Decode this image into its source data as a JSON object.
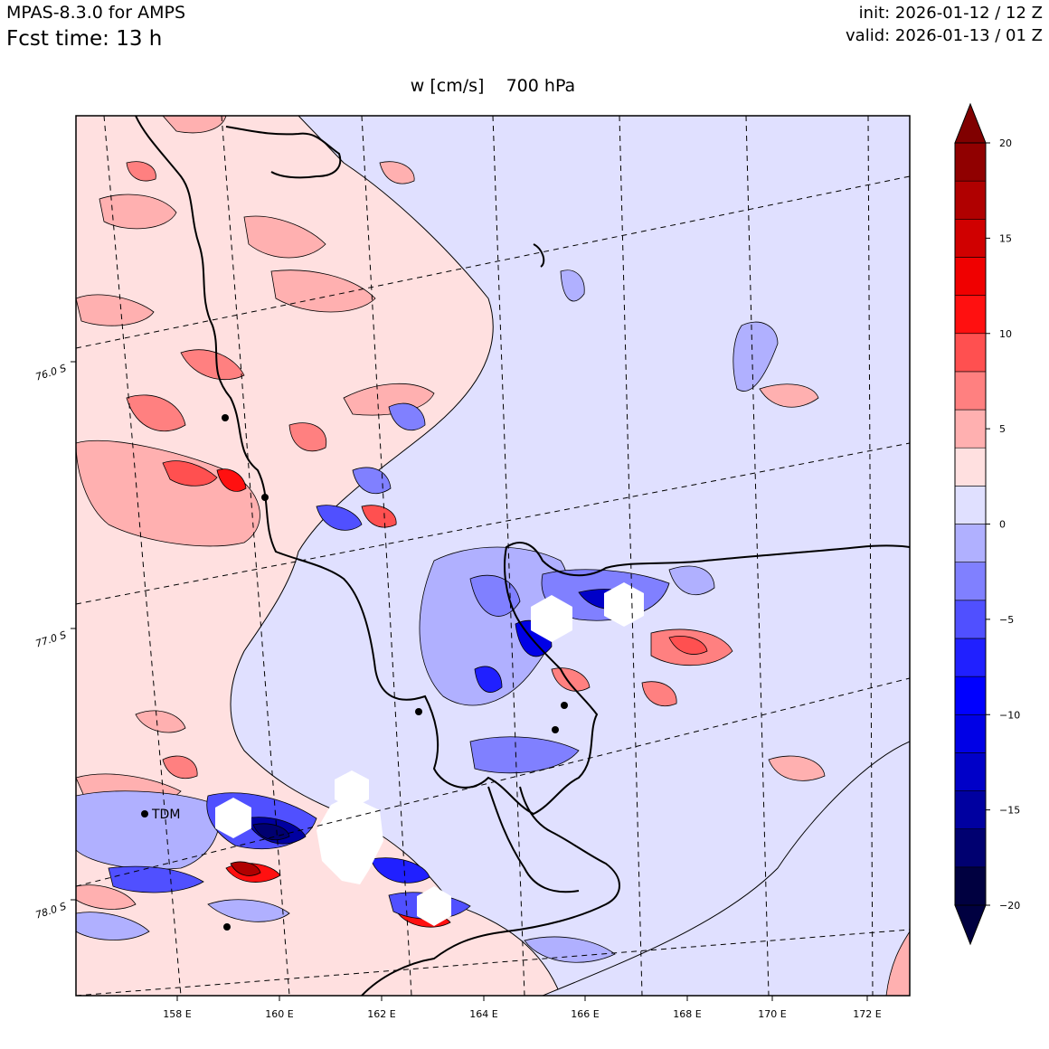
{
  "header": {
    "model": "MPAS-8.3.0 for AMPS",
    "forecast_time": "Fcst time:   13 h",
    "init": "init: 2026-01-12 / 12 Z",
    "valid": "valid: 2026-01-13 / 01 Z"
  },
  "plot": {
    "title": "w [cm/s]    700 hPa"
  },
  "axes": {
    "lon_ticks": [
      "158 E",
      "160 E",
      "162 E",
      "164 E",
      "166 E",
      "168 E",
      "170 E",
      "172 E"
    ],
    "lat_ticks": [
      "76.0 S",
      "77.0 S",
      "78.0 S"
    ]
  },
  "stations": [
    {
      "label": "TDM"
    }
  ],
  "colorbar": {
    "levels": [
      -20,
      -18,
      -16,
      -14,
      -12,
      -10,
      -8,
      -6,
      -4,
      -2,
      0,
      2,
      4,
      6,
      8,
      10,
      12,
      14,
      16,
      18,
      20
    ],
    "tick_labels": [
      "−20",
      "−15",
      "−10",
      "−5",
      "0",
      "5",
      "10",
      "15",
      "20"
    ],
    "colors": [
      "#000040",
      "#000070",
      "#0000a0",
      "#0000c8",
      "#0000e6",
      "#0000ff",
      "#2020ff",
      "#5050ff",
      "#8080ff",
      "#b0b0ff",
      "#e0e0ff",
      "#ffe0e0",
      "#ffb0b0",
      "#ff8080",
      "#ff5050",
      "#ff1010",
      "#f00000",
      "#d00000",
      "#b00000",
      "#900000"
    ],
    "under_color": "#000040",
    "over_color": "#800000"
  }
}
